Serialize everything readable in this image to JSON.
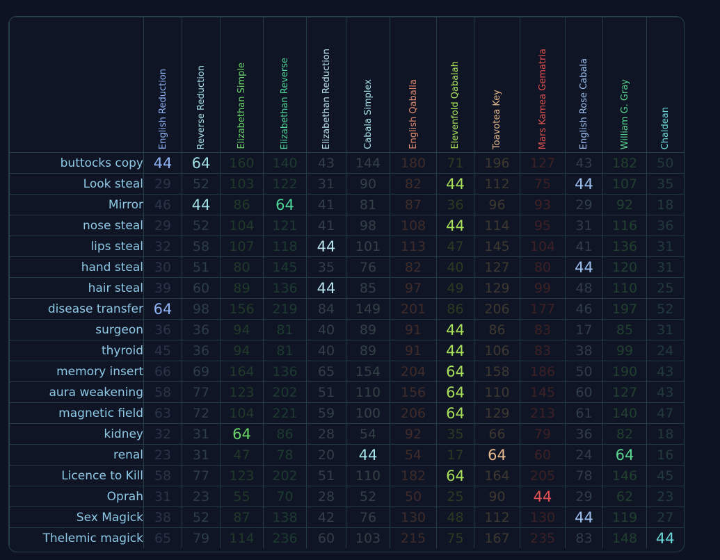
{
  "colors": {
    "English Reduction": "#8fb3f5",
    "Reverse Reduction": "#a0dde6",
    "Elizabethan Simple": "#6ad66a",
    "Elizabethan Reverse": "#4ed69a",
    "Elizabethan Reduction": "#b9e4ee",
    "Cabala Simplex": "#a3e0e8",
    "English Qaballa": "#e08a6e",
    "Elevenfold Qabalah": "#a8e05a",
    "Toavotea Key": "#e8b98e",
    "Mars Kamea Gematria": "#e05252",
    "English Rose Cabala": "#9ec0f0",
    "William G. Gray": "#5ad690",
    "Chaldean": "#6ad8d8"
  },
  "dim_colors": {
    "English Reduction": "#2a3448",
    "Reverse Reduction": "#2d3d47",
    "Elizabethan Simple": "#20392a",
    "Elizabethan Reverse": "#1d3a30",
    "Elizabethan Reduction": "#333f48",
    "Cabala Simplex": "#334147",
    "English Qaballa": "#3e2b2a",
    "Elevenfold Qabalah": "#2c3a22",
    "Toavotea Key": "#3e3830",
    "Mars Kamea Gematria": "#3d2025",
    "English Rose Cabala": "#303c4d",
    "William G. Gray": "#21402f",
    "Chaldean": "#233a3d"
  },
  "ciphers": [
    "English Reduction",
    "Reverse Reduction",
    "Elizabethan Simple",
    "Elizabethan Reverse",
    "Elizabethan Reduction",
    "Cabala Simplex",
    "English Qaballa",
    "Elevenfold Qabalah",
    "Toavotea Key",
    "Mars Kamea Gematria",
    "English Rose Cabala",
    "William G. Gray",
    "Chaldean"
  ],
  "highlight_values": [
    44,
    64
  ],
  "rows": [
    {
      "phrase": "buttocks copy",
      "values": [
        44,
        64,
        160,
        140,
        43,
        144,
        180,
        71,
        196,
        127,
        43,
        182,
        50
      ]
    },
    {
      "phrase": "Look steal",
      "values": [
        29,
        52,
        103,
        122,
        31,
        90,
        82,
        44,
        112,
        75,
        44,
        107,
        35
      ]
    },
    {
      "phrase": "Mirror",
      "values": [
        46,
        44,
        86,
        64,
        41,
        81,
        87,
        36,
        96,
        93,
        29,
        92,
        18
      ]
    },
    {
      "phrase": "nose steal",
      "values": [
        29,
        52,
        104,
        121,
        41,
        98,
        108,
        44,
        114,
        95,
        31,
        116,
        36
      ]
    },
    {
      "phrase": "lips steal",
      "values": [
        32,
        58,
        107,
        118,
        44,
        101,
        113,
        47,
        145,
        104,
        41,
        136,
        31
      ]
    },
    {
      "phrase": "hand steal",
      "values": [
        30,
        51,
        80,
        145,
        35,
        76,
        82,
        40,
        127,
        80,
        44,
        120,
        31
      ]
    },
    {
      "phrase": "hair steal",
      "values": [
        39,
        60,
        89,
        136,
        44,
        85,
        97,
        49,
        129,
        99,
        48,
        110,
        25
      ]
    },
    {
      "phrase": "disease transfer",
      "values": [
        64,
        98,
        156,
        219,
        84,
        149,
        201,
        86,
        206,
        177,
        46,
        197,
        52
      ]
    },
    {
      "phrase": "surgeon",
      "values": [
        36,
        36,
        94,
        81,
        40,
        89,
        91,
        44,
        86,
        83,
        17,
        85,
        31
      ]
    },
    {
      "phrase": "thyroid",
      "values": [
        45,
        36,
        94,
        81,
        40,
        89,
        91,
        44,
        106,
        83,
        38,
        99,
        24
      ]
    },
    {
      "phrase": "memory insert",
      "values": [
        66,
        69,
        164,
        136,
        65,
        154,
        204,
        64,
        158,
        186,
        50,
        190,
        43
      ]
    },
    {
      "phrase": "aura weakening",
      "values": [
        58,
        77,
        123,
        202,
        51,
        110,
        156,
        64,
        110,
        145,
        60,
        127,
        43
      ]
    },
    {
      "phrase": "magnetic field",
      "values": [
        63,
        72,
        104,
        221,
        59,
        100,
        206,
        64,
        129,
        213,
        61,
        140,
        47
      ]
    },
    {
      "phrase": "kidney",
      "values": [
        32,
        31,
        64,
        86,
        28,
        54,
        92,
        35,
        66,
        79,
        36,
        82,
        18
      ]
    },
    {
      "phrase": "renal",
      "values": [
        23,
        31,
        47,
        78,
        20,
        44,
        54,
        17,
        64,
        60,
        24,
        64,
        16
      ]
    },
    {
      "phrase": "Licence to Kill",
      "values": [
        58,
        77,
        123,
        202,
        51,
        110,
        182,
        64,
        164,
        205,
        78,
        146,
        45
      ]
    },
    {
      "phrase": "Oprah",
      "values": [
        31,
        23,
        55,
        70,
        28,
        52,
        50,
        25,
        90,
        44,
        29,
        62,
        23
      ]
    },
    {
      "phrase": "Sex Magick",
      "values": [
        38,
        52,
        87,
        138,
        42,
        76,
        130,
        48,
        112,
        130,
        44,
        119,
        27
      ]
    },
    {
      "phrase": "Thelemic magick",
      "values": [
        65,
        79,
        114,
        236,
        60,
        103,
        215,
        75,
        167,
        235,
        83,
        148,
        44
      ]
    }
  ]
}
